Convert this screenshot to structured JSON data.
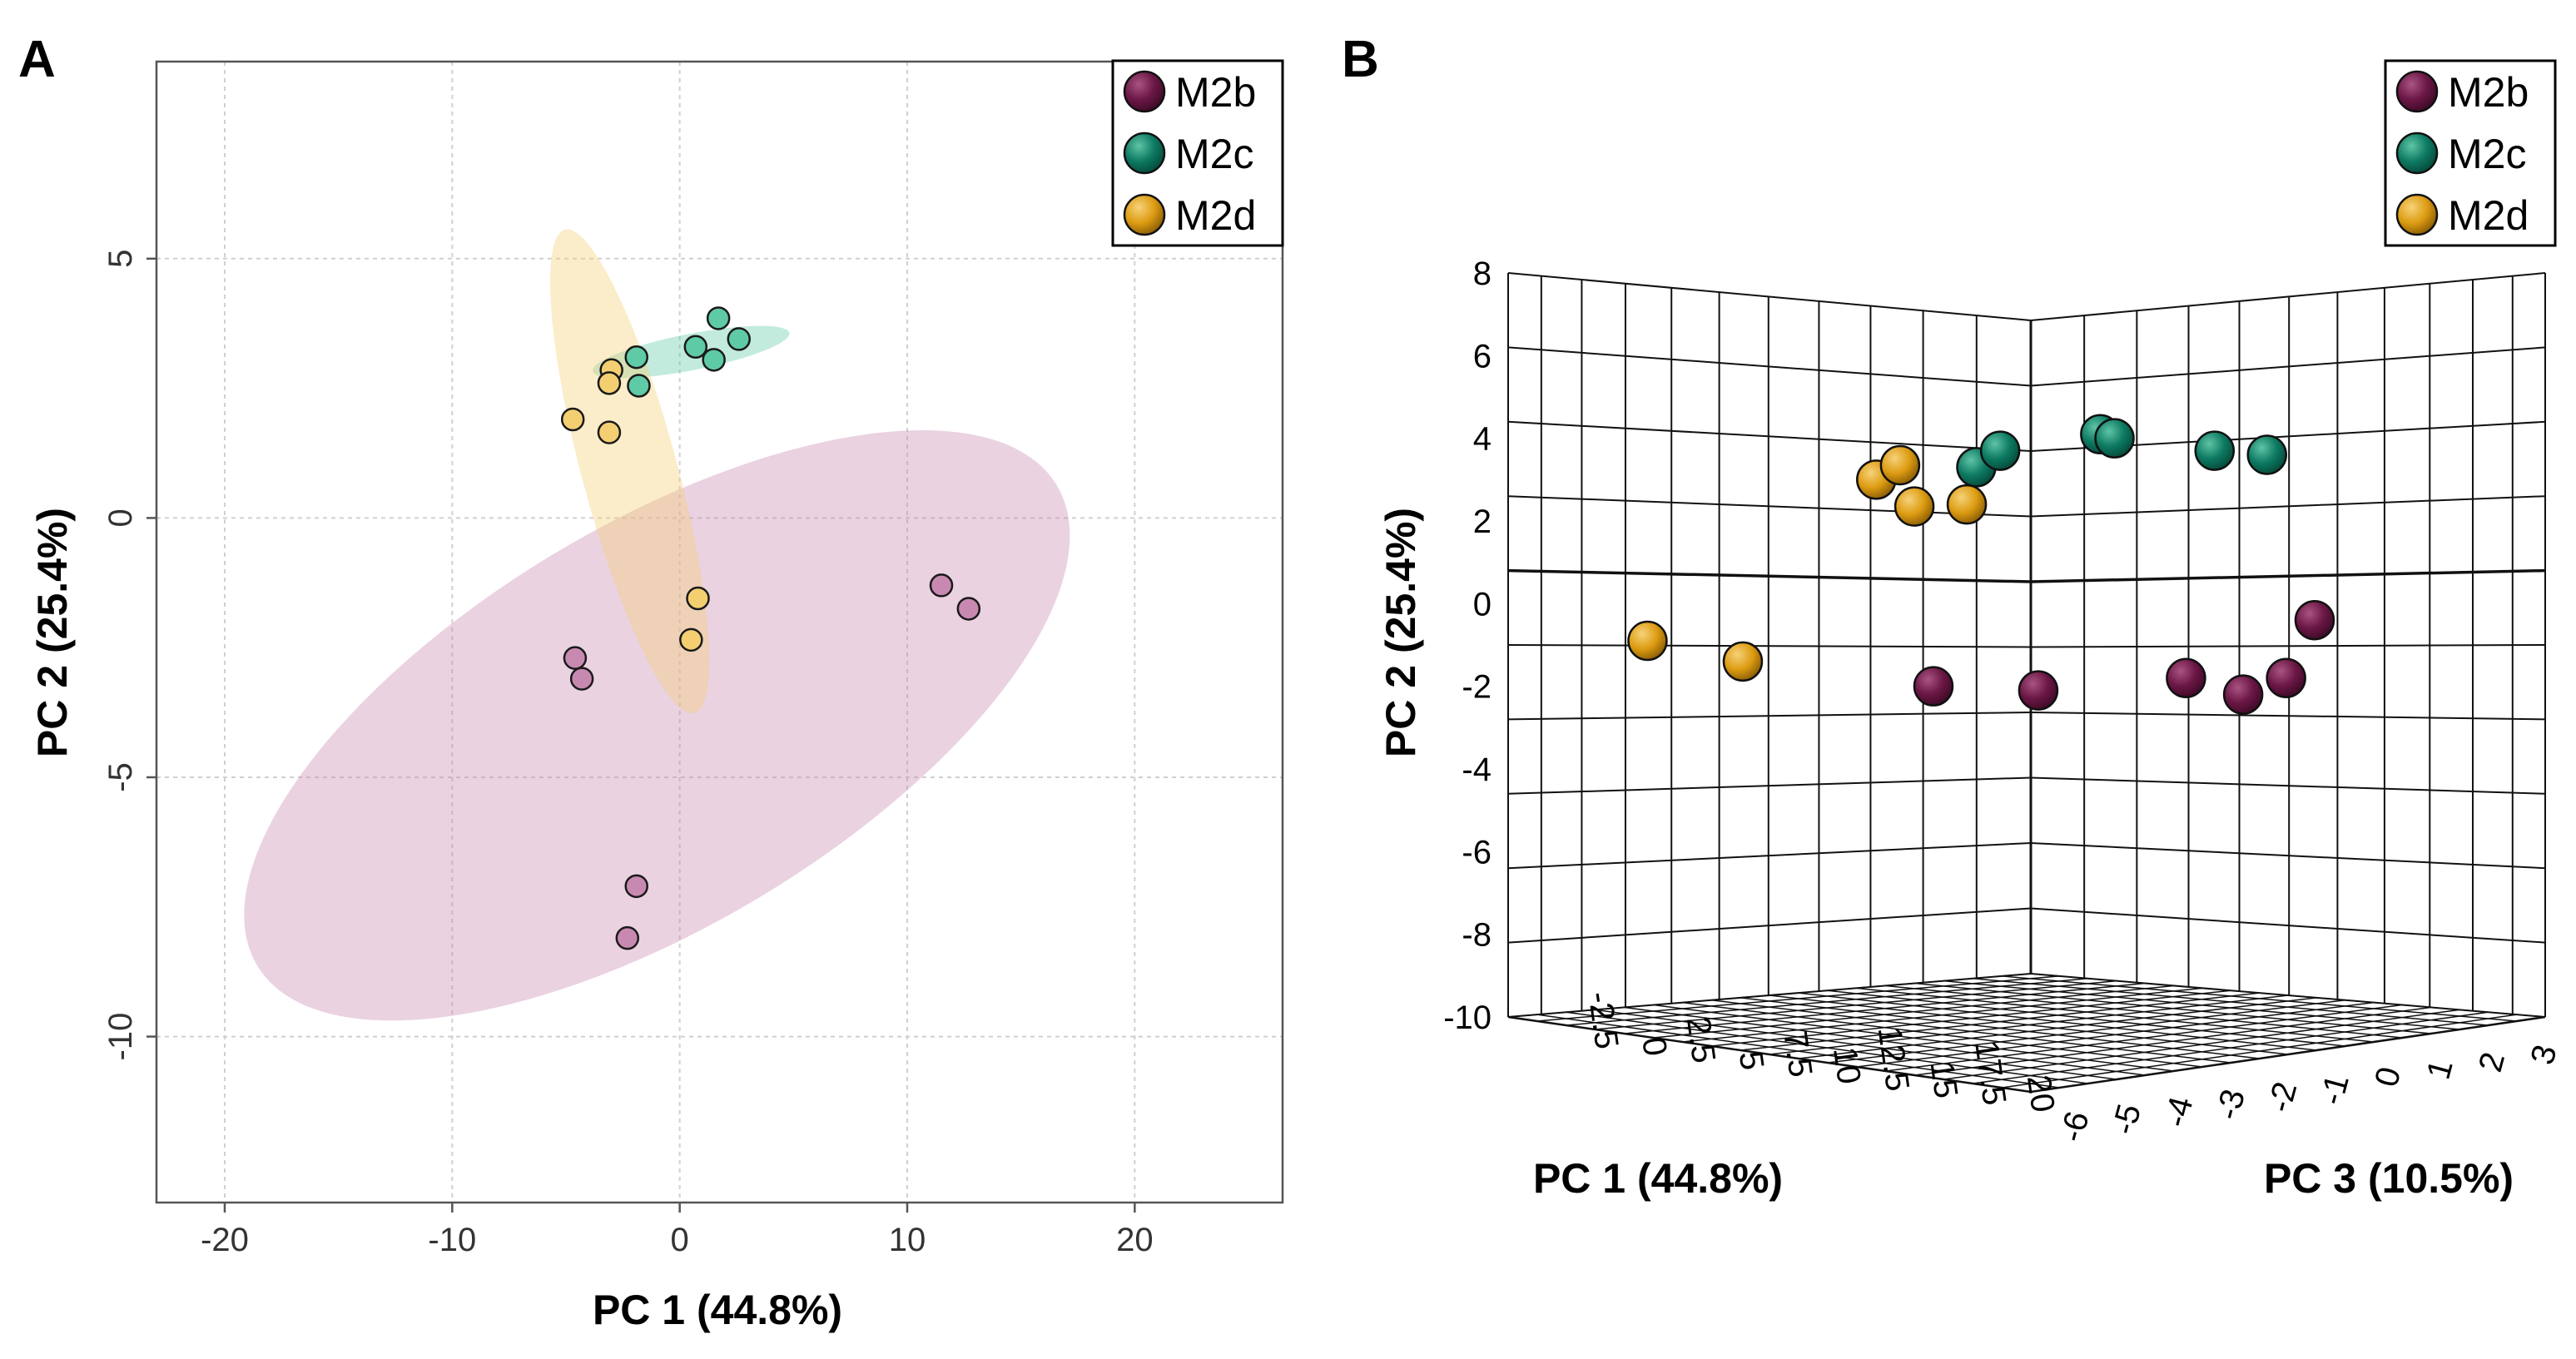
{
  "figure_labels": {
    "panel_a": "A",
    "panel_b": "B"
  },
  "colors": {
    "M2b": "#6b1745",
    "M2c": "#0d7a62",
    "M2d": "#dd9c12",
    "M2b_light": "#c889b1",
    "M2c_light": "#5fcaa6",
    "M2d_light": "#f4cf72"
  },
  "chart_data": [
    {
      "type": "scatter",
      "panel": "A",
      "xlabel": "PC 1 (44.8%)",
      "ylabel": "PC 2 (25.4%)",
      "xlim": [
        -23,
        26.5
      ],
      "ylim": [
        -13.2,
        8.8
      ],
      "xticks": [
        -20,
        -10,
        0,
        10,
        20
      ],
      "xtick_labels": [
        "-20",
        "-10",
        "0",
        "10",
        "20"
      ],
      "yticks": [
        5,
        0,
        -5,
        -10
      ],
      "ytick_labels": [
        "5",
        "0",
        "-5",
        "-10"
      ],
      "grid": true,
      "legend_position": "top-right",
      "series": [
        {
          "name": "M2b",
          "points": [
            [
              11.5,
              -1.3
            ],
            [
              12.7,
              -1.75
            ],
            [
              -4.6,
              -2.7
            ],
            [
              -4.3,
              -3.1
            ],
            [
              -1.9,
              -7.1
            ],
            [
              -2.3,
              -8.1
            ]
          ],
          "ellipse": {
            "center": [
              -1.0,
              -4.0
            ],
            "rx": 20.5,
            "ry": 8.8,
            "angle_deg": 31
          }
        },
        {
          "name": "M2c",
          "points": [
            [
              1.7,
              3.85
            ],
            [
              2.6,
              3.45
            ],
            [
              0.7,
              3.3
            ],
            [
              1.5,
              3.05
            ],
            [
              -1.9,
              3.1
            ],
            [
              -1.8,
              2.55
            ]
          ],
          "ellipse": {
            "center": [
              0.5,
              3.2
            ],
            "rx": 4.4,
            "ry": 0.8,
            "angle_deg": 11
          }
        },
        {
          "name": "M2d",
          "points": [
            [
              -3.0,
              2.85
            ],
            [
              -3.1,
              2.6
            ],
            [
              -4.7,
              1.9
            ],
            [
              -3.1,
              1.65
            ],
            [
              0.8,
              -1.55
            ],
            [
              0.5,
              -2.35
            ]
          ],
          "ellipse": {
            "center": [
              -2.2,
              0.9
            ],
            "rx": 11.0,
            "ry": 2.1,
            "angle_deg": -75
          }
        }
      ]
    },
    {
      "type": "scatter",
      "panel": "B",
      "projection": "3d",
      "xlabel": "PC 1 (44.8%)",
      "ylabel": "PC 2 (25.4%)",
      "zlabel": "PC 3 (10.5%)",
      "yticks": [
        8,
        6,
        4,
        2,
        0,
        -2,
        -4,
        -6,
        -8,
        -10
      ],
      "ytick_labels": [
        "8",
        "6",
        "4",
        "2",
        "0",
        "-2",
        "-4",
        "-6",
        "-8",
        "-10"
      ],
      "xtick_labels": [
        "-2.5",
        "0",
        "2.5",
        "5",
        "7.5",
        "10",
        "12.5",
        "15",
        "17.5",
        "20"
      ],
      "ztick_labels": [
        "-6",
        "-5",
        "-4",
        "-3",
        "-2",
        "-1",
        "0",
        "1",
        "2",
        "3"
      ],
      "legend_position": "top-right",
      "series": [
        {
          "name": "M2b",
          "points": [
            [
              -3.0,
              12.7
            ],
            [
              -2.6,
              11.5
            ],
            [
              -2.9,
              8.4
            ],
            [
              -2.8,
              6.2
            ],
            [
              -2.6,
              13.6
            ],
            [
              -1.2,
              14.2
            ]
          ]
        },
        {
          "name": "M2c",
          "points": [
            [
              2.5,
              7.1
            ],
            [
              2.9,
              7.6
            ],
            [
              3.3,
              9.7
            ],
            [
              3.2,
              10.0
            ],
            [
              2.9,
              12.1
            ],
            [
              2.8,
              13.2
            ]
          ]
        },
        {
          "name": "M2d",
          "points": [
            [
              1.55,
              5.8
            ],
            [
              2.2,
              5.0
            ],
            [
              2.55,
              5.5
            ],
            [
              1.6,
              6.9
            ],
            [
              -1.7,
              0.2
            ],
            [
              -2.2,
              2.2
            ]
          ]
        }
      ]
    }
  ]
}
